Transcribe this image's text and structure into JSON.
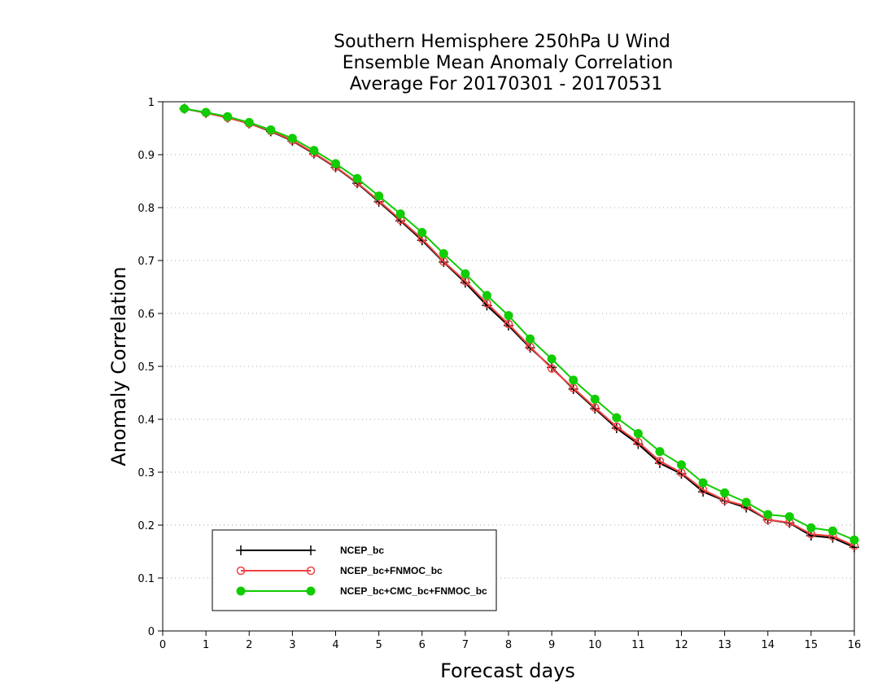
{
  "chart_data": {
    "type": "line",
    "title_lines": [
      "Southern Hemisphere 250hPa U Wind",
      "Ensemble Mean Anomaly Correlation",
      "Average For 20170301 - 20170531"
    ],
    "xlabel": "Forecast days",
    "ylabel": "Anomaly Correlation",
    "xlim": [
      0,
      16
    ],
    "ylim": [
      0,
      1
    ],
    "x_ticks": [
      0,
      1,
      2,
      3,
      4,
      5,
      6,
      7,
      8,
      9,
      10,
      11,
      12,
      13,
      14,
      15,
      16
    ],
    "y_ticks": [
      0,
      0.1,
      0.2,
      0.3,
      0.4,
      0.5,
      0.6,
      0.7,
      0.8,
      0.9,
      1
    ],
    "y_tick_labels": [
      "0",
      "0.1",
      "0.2",
      "0.3",
      "0.4",
      "0.5",
      "0.6",
      "0.7",
      "0.8",
      "0.9",
      "1"
    ],
    "grid": "horizontal dotted",
    "legend_position": "bottom-left",
    "x": [
      0.5,
      1,
      1.5,
      2,
      2.5,
      3,
      3.5,
      4,
      4.5,
      5,
      5.5,
      6,
      6.5,
      7,
      7.5,
      8,
      8.5,
      9,
      9.5,
      10,
      10.5,
      11,
      11.5,
      12,
      12.5,
      13,
      13.5,
      14,
      14.5,
      15,
      15.5,
      16
    ],
    "series": [
      {
        "name": "NCEP_bc",
        "color": "#000000",
        "marker": "plus",
        "values": [
          0.987,
          0.979,
          0.97,
          0.959,
          0.944,
          0.926,
          0.902,
          0.876,
          0.846,
          0.811,
          0.775,
          0.738,
          0.697,
          0.658,
          0.615,
          0.577,
          0.535,
          0.498,
          0.457,
          0.42,
          0.383,
          0.353,
          0.317,
          0.297,
          0.263,
          0.246,
          0.233,
          0.21,
          0.204,
          0.18,
          0.176,
          0.158
        ]
      },
      {
        "name": "NCEP_bc+FNMOC_bc",
        "color": "#f04040",
        "marker": "open-circle",
        "values": [
          0.987,
          0.979,
          0.97,
          0.959,
          0.945,
          0.927,
          0.903,
          0.877,
          0.847,
          0.813,
          0.777,
          0.741,
          0.698,
          0.661,
          0.619,
          0.58,
          0.537,
          0.496,
          0.459,
          0.422,
          0.386,
          0.357,
          0.321,
          0.299,
          0.267,
          0.247,
          0.236,
          0.21,
          0.205,
          0.183,
          0.179,
          0.161
        ]
      },
      {
        "name": "NCEP_bc+CMC_bc+FNMOC_bc",
        "color": "#11cc00",
        "marker": "filled-circle",
        "values": [
          0.987,
          0.98,
          0.972,
          0.961,
          0.947,
          0.931,
          0.908,
          0.883,
          0.855,
          0.822,
          0.788,
          0.753,
          0.713,
          0.675,
          0.634,
          0.596,
          0.552,
          0.514,
          0.474,
          0.438,
          0.403,
          0.373,
          0.339,
          0.314,
          0.28,
          0.261,
          0.243,
          0.22,
          0.216,
          0.195,
          0.189,
          0.172
        ]
      }
    ]
  }
}
